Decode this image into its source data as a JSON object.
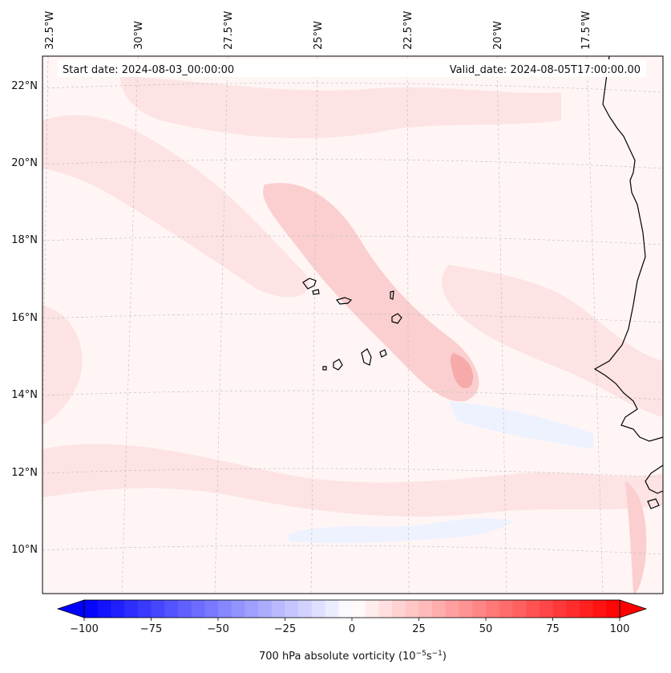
{
  "map": {
    "start_date": "Start date: 2024-08-03_00:00:00",
    "valid_date": "Valid_date: 2024-08-05T17:00:00.00",
    "lon_labels": [
      "32.5°W",
      "30°W",
      "27.5°W",
      "25°W",
      "22.5°W",
      "20°W",
      "17.5°W"
    ],
    "lat_labels": [
      "22°N",
      "20°N",
      "18°N",
      "16°N",
      "14°N",
      "12°N",
      "10°N"
    ],
    "field_colors": {
      "light_red": "#fde3e3",
      "mid_red": "#fbcfcf",
      "strong_red": "#f6aaaa",
      "light_blue": "#eef2ff",
      "background": "#fff5f5"
    },
    "coastline_color": "#000000"
  },
  "colorbar": {
    "label_main": "700 hPa absolute vorticity (10",
    "label_exp1": "−5",
    "label_mid": "s",
    "label_exp2": "−1",
    "label_end": ")",
    "ticks": [
      "−100",
      "−75",
      "−50",
      "−25",
      "0",
      "25",
      "50",
      "75",
      "100"
    ],
    "tick_values": [
      -100,
      -75,
      -50,
      -25,
      0,
      25,
      50,
      75,
      100
    ],
    "min": -100,
    "max": 100,
    "step": 5,
    "cmap_low": "#0000ff",
    "cmap_mid": "#ffffff",
    "cmap_high": "#ff0000"
  }
}
